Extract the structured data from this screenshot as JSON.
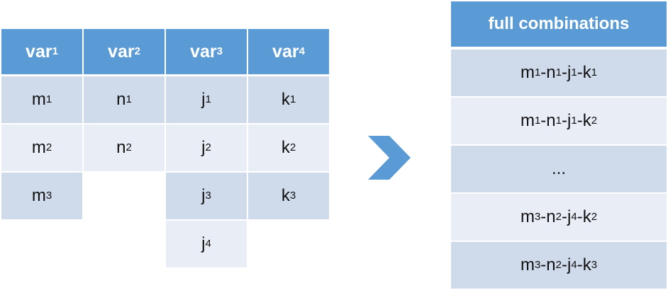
{
  "left_table": {
    "headers": [
      {
        "name": "var",
        "sub": "1"
      },
      {
        "name": "var",
        "sub": "2"
      },
      {
        "name": "var",
        "sub": "3"
      },
      {
        "name": "var",
        "sub": "4"
      }
    ],
    "columns": [
      [
        {
          "name": "m",
          "sub": "1"
        },
        {
          "name": "m",
          "sub": "2"
        },
        {
          "name": "m",
          "sub": "3"
        }
      ],
      [
        {
          "name": "n",
          "sub": "1"
        },
        {
          "name": "n",
          "sub": "2"
        }
      ],
      [
        {
          "name": "j",
          "sub": "1"
        },
        {
          "name": "j",
          "sub": "2"
        },
        {
          "name": "j",
          "sub": "3"
        },
        {
          "name": "j",
          "sub": "4"
        }
      ],
      [
        {
          "name": "k",
          "sub": "1"
        },
        {
          "name": "k",
          "sub": "2"
        },
        {
          "name": "k",
          "sub": "3"
        }
      ]
    ]
  },
  "arrow": {
    "icon": "chevron-right-icon",
    "color": "#5b9bd5"
  },
  "right_table": {
    "header": "full combinations",
    "rows": [
      [
        {
          "name": "m",
          "sub": "1"
        },
        {
          "name": "n",
          "sub": "1"
        },
        {
          "name": "j",
          "sub": "1"
        },
        {
          "name": "k",
          "sub": "1"
        }
      ],
      [
        {
          "name": "m",
          "sub": "1"
        },
        {
          "name": "n",
          "sub": "1"
        },
        {
          "name": "j",
          "sub": "1"
        },
        {
          "name": "k",
          "sub": "2"
        }
      ],
      "...",
      [
        {
          "name": "m",
          "sub": "3"
        },
        {
          "name": "n",
          "sub": "2"
        },
        {
          "name": "j",
          "sub": "4"
        },
        {
          "name": "k",
          "sub": "2"
        }
      ],
      [
        {
          "name": "m",
          "sub": "3"
        },
        {
          "name": "n",
          "sub": "2"
        },
        {
          "name": "j",
          "sub": "4"
        },
        {
          "name": "k",
          "sub": "3"
        }
      ]
    ]
  },
  "colors": {
    "header": "#5b9bd5",
    "row_dark": "#cfdaeb",
    "row_light": "#e8edf6"
  }
}
